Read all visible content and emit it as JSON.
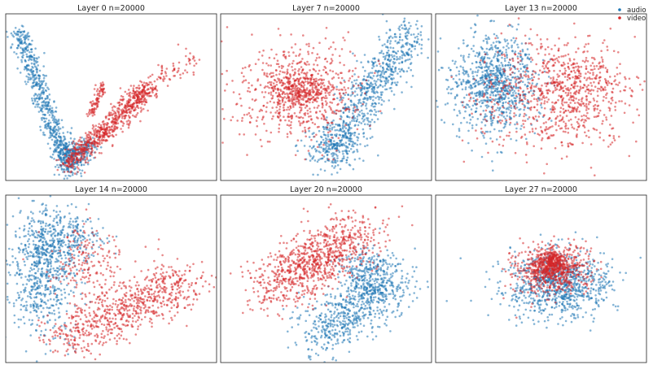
{
  "legend": {
    "placement": "top-right",
    "items": [
      {
        "label": "audio",
        "color": "#1f77b4"
      },
      {
        "label": "video",
        "color": "#d62728"
      }
    ]
  },
  "chart_data": [
    {
      "type": "scatter",
      "title": "Layer 0  n=20000",
      "xlabel": "",
      "ylabel": "",
      "ticks": "none",
      "grid": false,
      "series": [
        {
          "name": "audio",
          "color": "#1f77b4",
          "clusters": [
            {
              "shape": "segment",
              "from": [
                0.06,
                0.9
              ],
              "to": [
                0.3,
                0.06
              ],
              "spread": 0.025,
              "share": 0.65
            },
            {
              "shape": "segment",
              "from": [
                0.3,
                0.08
              ],
              "to": [
                0.4,
                0.22
              ],
              "spread": 0.03,
              "share": 0.2
            },
            {
              "shape": "blob",
              "center": [
                0.3,
                0.18
              ],
              "sd": [
                0.04,
                0.05
              ],
              "share": 0.15
            }
          ]
        },
        {
          "name": "video",
          "color": "#d62728",
          "clusters": [
            {
              "shape": "segment",
              "from": [
                0.3,
                0.1
              ],
              "to": [
                0.68,
                0.55
              ],
              "spread": 0.03,
              "share": 0.78
            },
            {
              "shape": "segment",
              "from": [
                0.4,
                0.38
              ],
              "to": [
                0.46,
                0.58
              ],
              "spread": 0.012,
              "share": 0.1
            },
            {
              "shape": "segment",
              "from": [
                0.55,
                0.45
              ],
              "to": [
                0.9,
                0.75
              ],
              "spread": 0.035,
              "share": 0.12
            }
          ]
        }
      ]
    },
    {
      "type": "scatter",
      "title": "Layer 7  n=20000",
      "xlabel": "",
      "ylabel": "",
      "ticks": "none",
      "grid": false,
      "series": [
        {
          "name": "audio",
          "color": "#1f77b4",
          "clusters": [
            {
              "shape": "segment",
              "from": [
                0.5,
                0.12
              ],
              "to": [
                0.9,
                0.9
              ],
              "spread": 0.055,
              "share": 0.85
            },
            {
              "shape": "blob",
              "center": [
                0.55,
                0.22
              ],
              "sd": [
                0.07,
                0.06
              ],
              "share": 0.15
            }
          ]
        },
        {
          "name": "video",
          "color": "#d62728",
          "clusters": [
            {
              "shape": "blob",
              "center": [
                0.38,
                0.54
              ],
              "sd": [
                0.15,
                0.15
              ],
              "share": 0.7
            },
            {
              "shape": "blob",
              "center": [
                0.38,
                0.54
              ],
              "sd": [
                0.08,
                0.06
              ],
              "share": 0.3
            }
          ]
        }
      ]
    },
    {
      "type": "scatter",
      "title": "Layer 13  n=20000",
      "xlabel": "",
      "ylabel": "",
      "ticks": "none",
      "grid": false,
      "series": [
        {
          "name": "audio",
          "color": "#1f77b4",
          "clusters": [
            {
              "shape": "blob",
              "center": [
                0.28,
                0.58
              ],
              "sd": [
                0.1,
                0.15
              ],
              "share": 1.0
            }
          ]
        },
        {
          "name": "video",
          "color": "#d62728",
          "clusters": [
            {
              "shape": "blob",
              "center": [
                0.58,
                0.5
              ],
              "sd": [
                0.19,
                0.17
              ],
              "share": 0.85
            },
            {
              "shape": "blob",
              "center": [
                0.68,
                0.62
              ],
              "sd": [
                0.1,
                0.09
              ],
              "share": 0.15
            }
          ]
        }
      ]
    },
    {
      "type": "scatter",
      "title": "Layer 14  n=20000",
      "xlabel": "",
      "ylabel": "",
      "ticks": "none",
      "grid": false,
      "series": [
        {
          "name": "audio",
          "color": "#1f77b4",
          "clusters": [
            {
              "shape": "blob",
              "center": [
                0.18,
                0.55
              ],
              "sd": [
                0.08,
                0.2
              ],
              "share": 0.75
            },
            {
              "shape": "blob",
              "center": [
                0.28,
                0.75
              ],
              "sd": [
                0.1,
                0.07
              ],
              "share": 0.25
            }
          ]
        },
        {
          "name": "video",
          "color": "#d62728",
          "clusters": [
            {
              "shape": "segment",
              "from": [
                0.28,
                0.15
              ],
              "to": [
                0.85,
                0.48
              ],
              "spread": 0.075,
              "share": 0.8
            },
            {
              "shape": "blob",
              "center": [
                0.4,
                0.6
              ],
              "sd": [
                0.1,
                0.12
              ],
              "share": 0.2
            }
          ]
        }
      ]
    },
    {
      "type": "scatter",
      "title": "Layer 20  n=20000",
      "xlabel": "",
      "ylabel": "",
      "ticks": "none",
      "grid": false,
      "series": [
        {
          "name": "audio",
          "color": "#1f77b4",
          "clusters": [
            {
              "shape": "segment",
              "from": [
                0.45,
                0.15
              ],
              "to": [
                0.82,
                0.5
              ],
              "spread": 0.08,
              "share": 0.75
            },
            {
              "shape": "blob",
              "center": [
                0.7,
                0.55
              ],
              "sd": [
                0.07,
                0.08
              ],
              "share": 0.25
            }
          ]
        },
        {
          "name": "video",
          "color": "#d62728",
          "clusters": [
            {
              "shape": "segment",
              "from": [
                0.22,
                0.42
              ],
              "to": [
                0.68,
                0.8
              ],
              "spread": 0.085,
              "share": 0.9
            },
            {
              "shape": "blob",
              "center": [
                0.45,
                0.62
              ],
              "sd": [
                0.08,
                0.06
              ],
              "share": 0.1
            }
          ]
        }
      ]
    },
    {
      "type": "scatter",
      "title": "Layer 27  n=20000",
      "xlabel": "",
      "ylabel": "",
      "ticks": "none",
      "grid": false,
      "series": [
        {
          "name": "audio",
          "color": "#1f77b4",
          "clusters": [
            {
              "shape": "blob",
              "center": [
                0.58,
                0.47
              ],
              "sd": [
                0.12,
                0.1
              ],
              "share": 1.0
            }
          ]
        },
        {
          "name": "video",
          "color": "#d62728",
          "clusters": [
            {
              "shape": "blob",
              "center": [
                0.55,
                0.55
              ],
              "sd": [
                0.09,
                0.07
              ],
              "share": 0.7
            },
            {
              "shape": "blob",
              "center": [
                0.56,
                0.6
              ],
              "sd": [
                0.04,
                0.04
              ],
              "share": 0.3
            }
          ]
        }
      ]
    }
  ]
}
